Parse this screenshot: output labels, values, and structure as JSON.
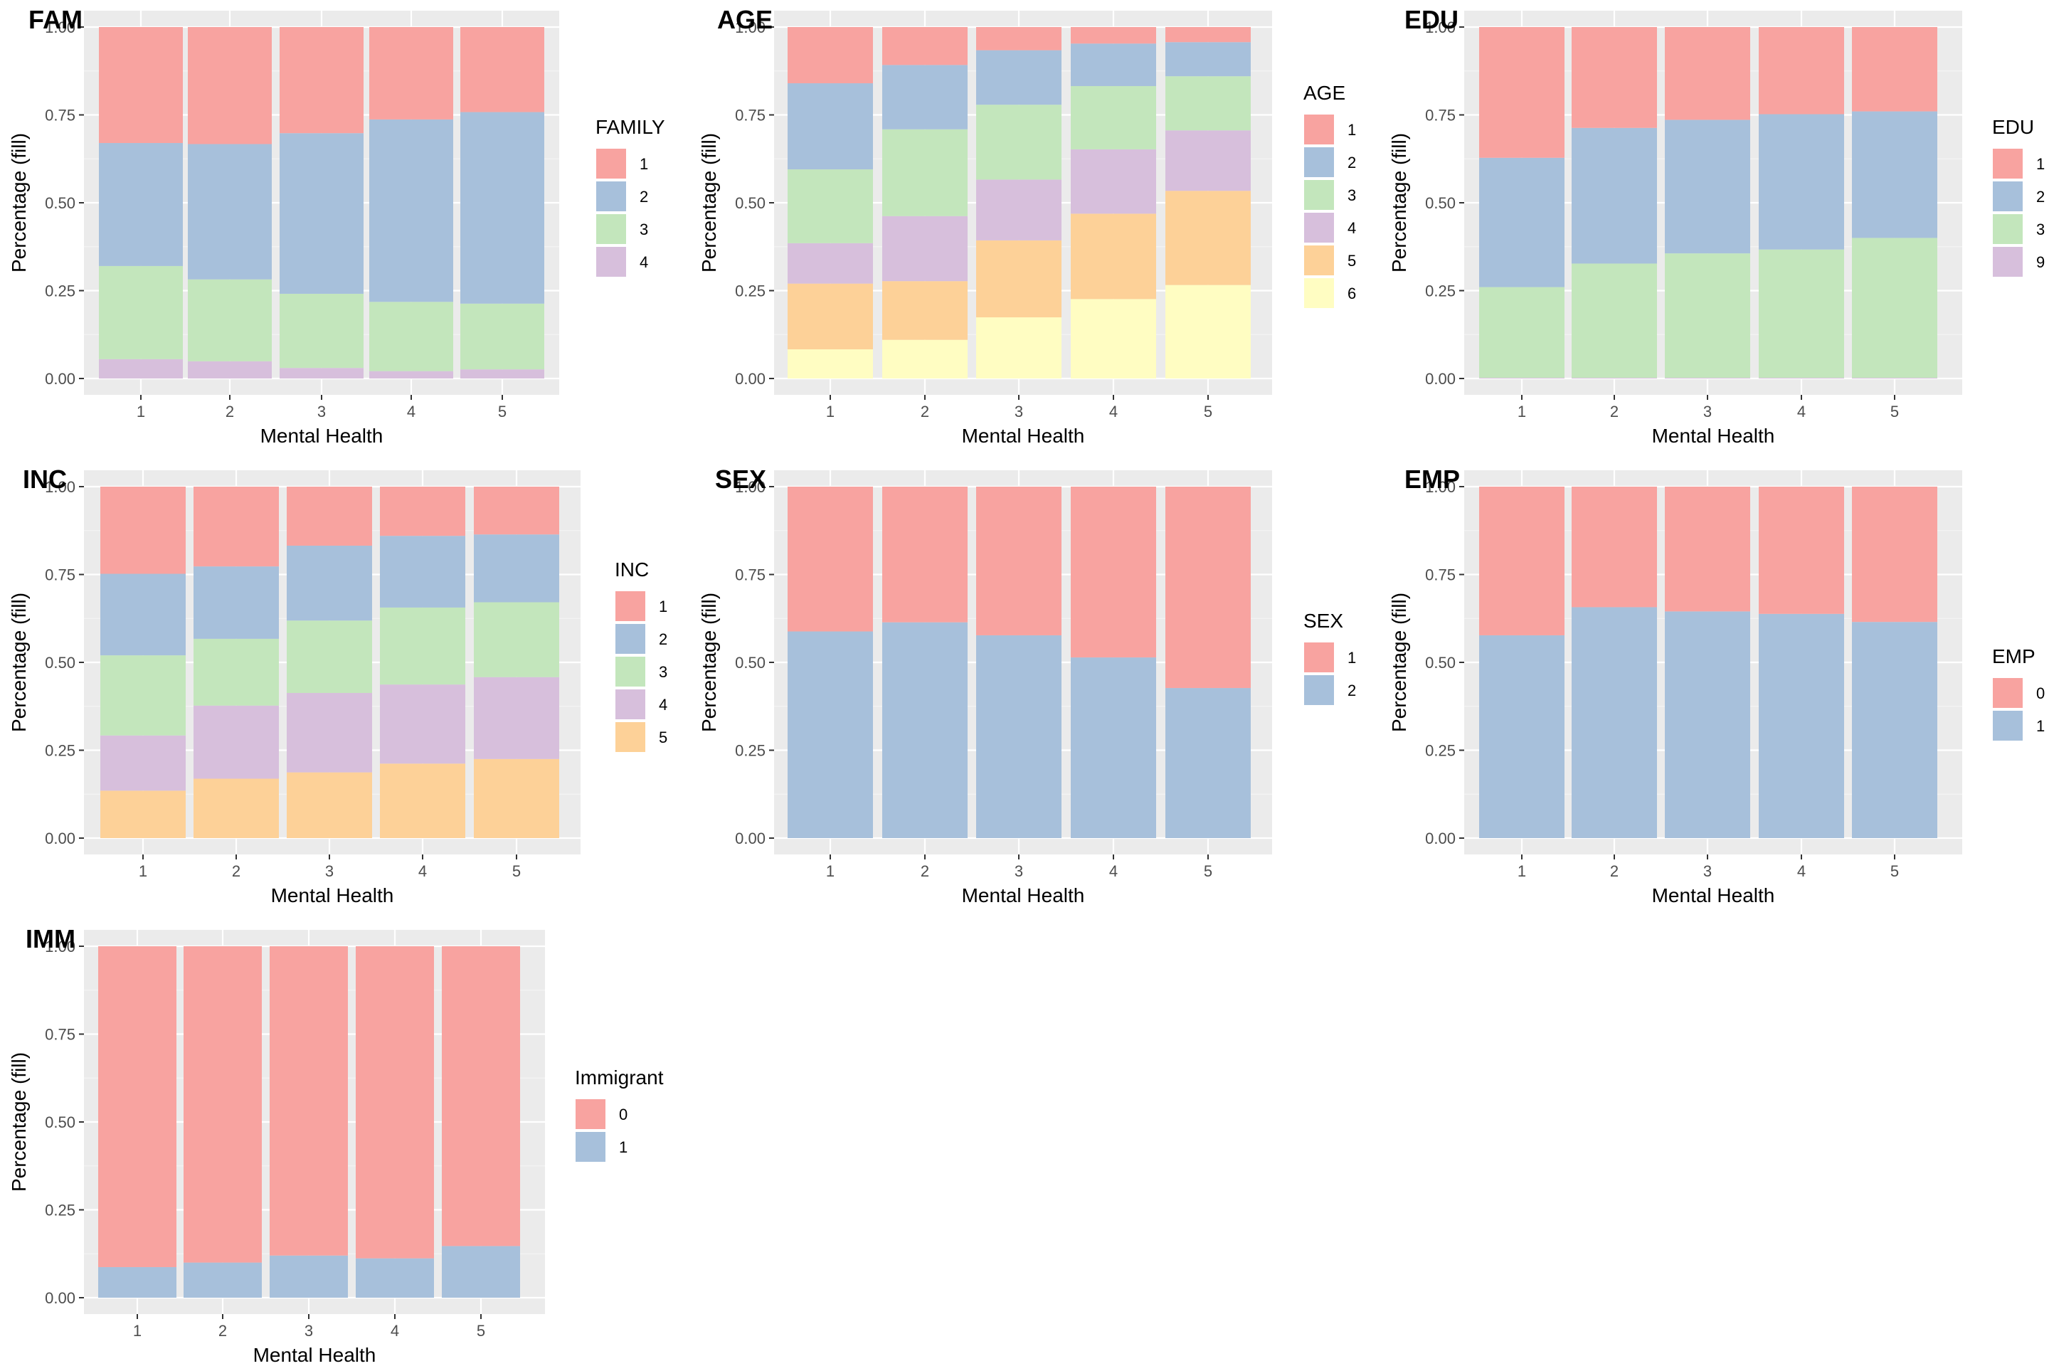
{
  "colors": {
    "panel_bg": "#EBEBEB",
    "grid_major": "#FFFFFF",
    "grid_minor": "#F4F4F4",
    "axis_text": "#4D4D4D",
    "title_text": "#000000",
    "palette": [
      "#F8A3A0",
      "#A7C0DB",
      "#C3E6BC",
      "#D7BFDC",
      "#FDD198",
      "#FFFDC2"
    ]
  },
  "chart_data": [
    {
      "tag": "FAM",
      "type": "bar",
      "stacked": "fill",
      "xlabel": "Mental Health",
      "ylabel": "Percentage (fill)",
      "categories": [
        "1",
        "2",
        "3",
        "4",
        "5"
      ],
      "yticks": [
        "0.00",
        "0.25",
        "0.50",
        "0.75",
        "1.00"
      ],
      "ylim": [
        0,
        1
      ],
      "legend_title": "FAMILY",
      "series": [
        {
          "name": "1",
          "values": [
            0.33,
            0.333,
            0.302,
            0.263,
            0.242
          ]
        },
        {
          "name": "2",
          "values": [
            0.35,
            0.385,
            0.457,
            0.519,
            0.545
          ]
        },
        {
          "name": "3",
          "values": [
            0.265,
            0.233,
            0.211,
            0.197,
            0.187
          ]
        },
        {
          "name": "4",
          "values": [
            0.055,
            0.049,
            0.03,
            0.021,
            0.026
          ]
        }
      ]
    },
    {
      "tag": "AGE",
      "type": "bar",
      "stacked": "fill",
      "xlabel": "Mental Health",
      "ylabel": "Percentage (fill)",
      "categories": [
        "1",
        "2",
        "3",
        "4",
        "5"
      ],
      "yticks": [
        "0.00",
        "0.25",
        "0.50",
        "0.75",
        "1.00"
      ],
      "ylim": [
        0,
        1
      ],
      "legend_title": "AGE",
      "series": [
        {
          "name": "1",
          "values": [
            0.16,
            0.108,
            0.066,
            0.047,
            0.043
          ]
        },
        {
          "name": "2",
          "values": [
            0.245,
            0.183,
            0.155,
            0.121,
            0.097
          ]
        },
        {
          "name": "3",
          "values": [
            0.21,
            0.247,
            0.213,
            0.18,
            0.154
          ]
        },
        {
          "name": "4",
          "values": [
            0.115,
            0.185,
            0.173,
            0.183,
            0.172
          ]
        },
        {
          "name": "5",
          "values": [
            0.187,
            0.167,
            0.219,
            0.243,
            0.268
          ]
        },
        {
          "name": "6",
          "values": [
            0.083,
            0.11,
            0.174,
            0.226,
            0.266
          ]
        }
      ]
    },
    {
      "tag": "EDU",
      "type": "bar",
      "stacked": "fill",
      "xlabel": "Mental Health",
      "ylabel": "Percentage (fill)",
      "categories": [
        "1",
        "2",
        "3",
        "4",
        "5"
      ],
      "yticks": [
        "0.00",
        "0.25",
        "0.50",
        "0.75",
        "1.00"
      ],
      "ylim": [
        0,
        1
      ],
      "legend_title": "EDU",
      "series": [
        {
          "name": "1",
          "values": [
            0.372,
            0.287,
            0.264,
            0.248,
            0.24
          ]
        },
        {
          "name": "2",
          "values": [
            0.368,
            0.386,
            0.38,
            0.385,
            0.36
          ]
        },
        {
          "name": "3",
          "values": [
            0.258,
            0.325,
            0.354,
            0.365,
            0.398
          ]
        },
        {
          "name": "9",
          "values": [
            0.002,
            0.002,
            0.002,
            0.002,
            0.002
          ]
        }
      ]
    },
    {
      "tag": "INC",
      "type": "bar",
      "stacked": "fill",
      "xlabel": "Mental Health",
      "ylabel": "Percentage (fill)",
      "categories": [
        "1",
        "2",
        "3",
        "4",
        "5"
      ],
      "yticks": [
        "0.00",
        "0.25",
        "0.50",
        "0.75",
        "1.00"
      ],
      "ylim": [
        0,
        1
      ],
      "legend_title": "INC",
      "series": [
        {
          "name": "1",
          "values": [
            0.248,
            0.227,
            0.168,
            0.14,
            0.136
          ]
        },
        {
          "name": "2",
          "values": [
            0.232,
            0.206,
            0.213,
            0.204,
            0.193
          ]
        },
        {
          "name": "3",
          "values": [
            0.228,
            0.19,
            0.206,
            0.219,
            0.213
          ]
        },
        {
          "name": "4",
          "values": [
            0.157,
            0.208,
            0.226,
            0.225,
            0.233
          ]
        },
        {
          "name": "5",
          "values": [
            0.135,
            0.169,
            0.187,
            0.212,
            0.225
          ]
        }
      ]
    },
    {
      "tag": "SEX",
      "type": "bar",
      "stacked": "fill",
      "xlabel": "Mental Health",
      "ylabel": "Percentage (fill)",
      "categories": [
        "1",
        "2",
        "3",
        "4",
        "5"
      ],
      "yticks": [
        "0.00",
        "0.25",
        "0.50",
        "0.75",
        "1.00"
      ],
      "ylim": [
        0,
        1
      ],
      "legend_title": "SEX",
      "series": [
        {
          "name": "1",
          "values": [
            0.412,
            0.386,
            0.423,
            0.486,
            0.573
          ]
        },
        {
          "name": "2",
          "values": [
            0.588,
            0.614,
            0.577,
            0.514,
            0.427
          ]
        }
      ]
    },
    {
      "tag": "EMP",
      "type": "bar",
      "stacked": "fill",
      "xlabel": "Mental Health",
      "ylabel": "Percentage (fill)",
      "categories": [
        "1",
        "2",
        "3",
        "4",
        "5"
      ],
      "yticks": [
        "0.00",
        "0.25",
        "0.50",
        "0.75",
        "1.00"
      ],
      "ylim": [
        0,
        1
      ],
      "legend_title": "EMP",
      "series": [
        {
          "name": "0",
          "values": [
            0.423,
            0.343,
            0.355,
            0.362,
            0.385
          ]
        },
        {
          "name": "1",
          "values": [
            0.577,
            0.657,
            0.645,
            0.638,
            0.615
          ]
        }
      ]
    },
    {
      "tag": "IMM",
      "type": "bar",
      "stacked": "fill",
      "xlabel": "Mental Health",
      "ylabel": "Percentage (fill)",
      "categories": [
        "1",
        "2",
        "3",
        "4",
        "5"
      ],
      "yticks": [
        "0.00",
        "0.25",
        "0.50",
        "0.75",
        "1.00"
      ],
      "ylim": [
        0,
        1
      ],
      "legend_title": "Immigrant",
      "series": [
        {
          "name": "0",
          "values": [
            0.913,
            0.9,
            0.88,
            0.888,
            0.853
          ]
        },
        {
          "name": "1",
          "values": [
            0.087,
            0.1,
            0.12,
            0.112,
            0.147
          ]
        }
      ]
    }
  ]
}
